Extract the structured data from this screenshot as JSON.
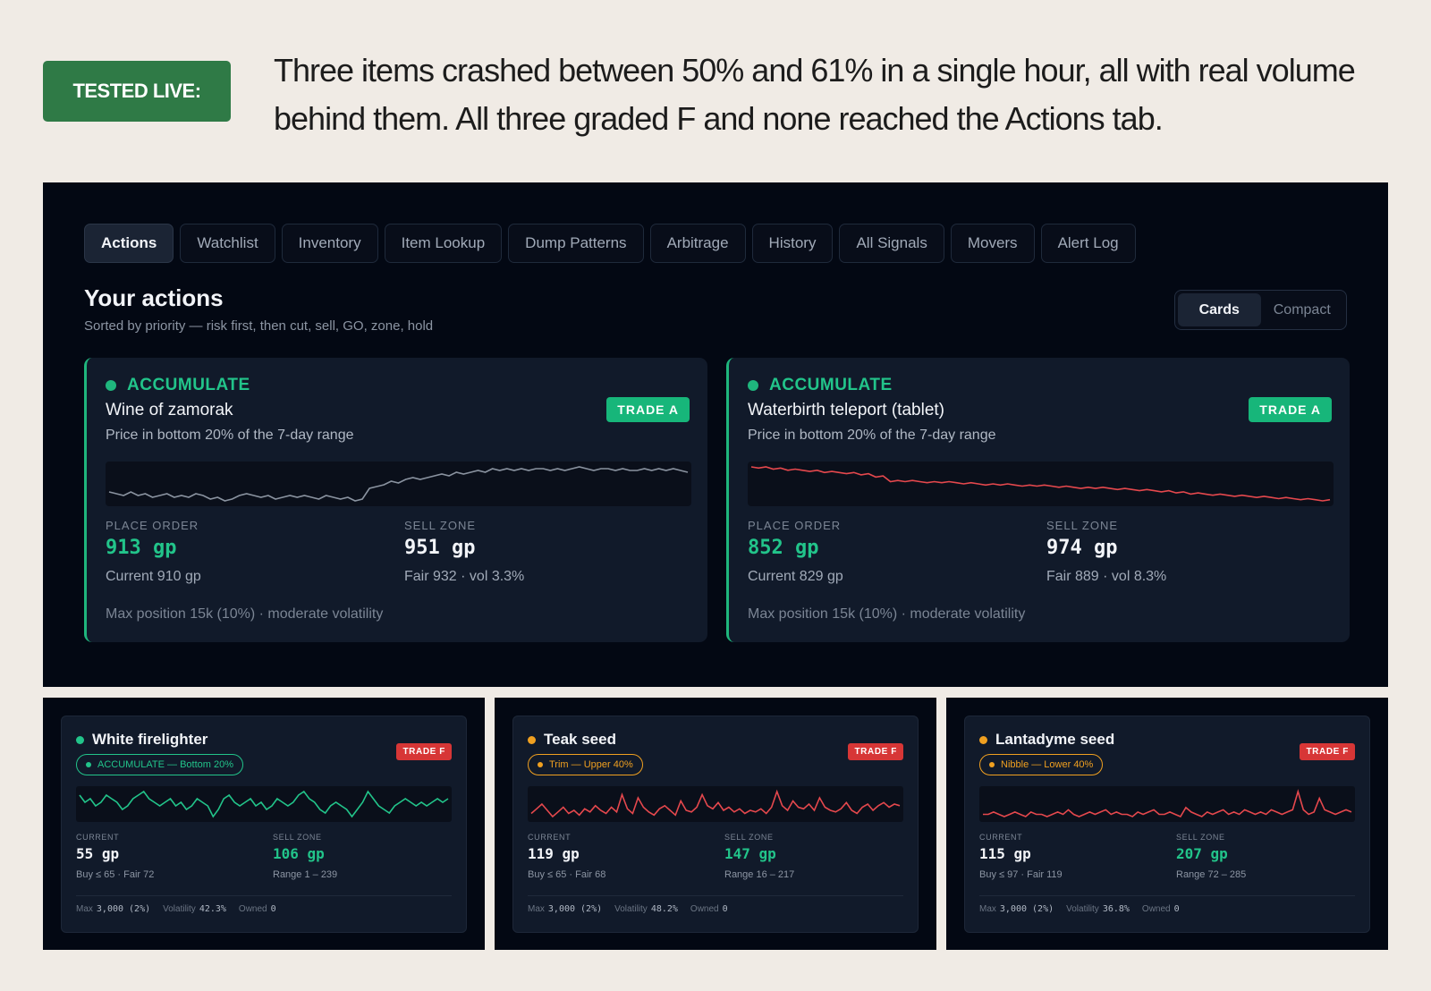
{
  "badge": "TESTED LIVE:",
  "headline": "Three items crashed between 50% and 61% in a single hour, all with real volume behind them. All three graded F and none reached the Actions tab.",
  "tabs": [
    "Actions",
    "Watchlist",
    "Inventory",
    "Item Lookup",
    "Dump Patterns",
    "Arbitrage",
    "History",
    "All Signals",
    "Movers",
    "Alert Log"
  ],
  "active_tab": "Actions",
  "section": {
    "title": "Your actions",
    "subtitle": "Sorted by priority — risk first, then cut, sell, GO, zone, hold"
  },
  "view_toggle": {
    "cards": "Cards",
    "compact": "Compact",
    "active": "Cards"
  },
  "colors": {
    "green": "#22c48a",
    "red": "#e5484d",
    "orange": "#f0a020",
    "grey": "#8a93a0"
  },
  "action_cards": [
    {
      "signal": "ACCUMULATE",
      "item": "Wine of zamorak",
      "grade": "TRADE A",
      "reason": "Price in bottom 20% of the 7-day range",
      "place_label": "PLACE ORDER",
      "place_value": "913 gp",
      "place_sub": "Current 910 gp",
      "sell_label": "SELL ZONE",
      "sell_value": "951 gp",
      "sell_sub": "Fair 932 · vol 3.3%",
      "footer": "Max position 15k (10%) · moderate volatility",
      "spark_color": "grey",
      "spark": [
        904,
        903,
        902,
        904,
        902,
        903,
        901,
        902,
        903,
        901,
        902,
        901,
        903,
        902,
        900,
        901,
        899,
        900,
        902,
        903,
        902,
        901,
        902,
        900,
        901,
        902,
        901,
        902,
        901,
        900,
        902,
        901,
        900,
        901,
        899,
        900,
        906,
        907,
        908,
        910,
        909,
        911,
        912,
        911,
        912,
        913,
        914,
        913,
        915,
        914,
        915,
        916,
        915,
        917,
        916,
        917,
        916,
        917,
        916,
        917,
        917,
        916,
        917,
        916,
        917,
        918,
        917,
        916,
        917,
        917,
        916,
        917,
        916,
        916,
        917,
        916,
        917,
        916,
        917,
        916,
        915
      ]
    },
    {
      "signal": "ACCUMULATE",
      "item": "Waterbirth teleport (tablet)",
      "grade": "TRADE A",
      "reason": "Price in bottom 20% of the 7-day range",
      "place_label": "PLACE ORDER",
      "place_value": "852 gp",
      "place_sub": "Current 829 gp",
      "sell_label": "SELL ZONE",
      "sell_value": "974 gp",
      "sell_sub": "Fair 889 · vol 8.3%",
      "footer": "Max position 15k (10%) · moderate volatility",
      "spark_color": "red",
      "spark": [
        975,
        974,
        975,
        973,
        974,
        972,
        973,
        972,
        971,
        972,
        970,
        971,
        970,
        969,
        970,
        968,
        969,
        966,
        967,
        962,
        963,
        962,
        963,
        962,
        961,
        962,
        961,
        962,
        961,
        960,
        961,
        960,
        959,
        960,
        959,
        960,
        959,
        958,
        959,
        958,
        959,
        958,
        957,
        958,
        957,
        956,
        957,
        956,
        957,
        956,
        955,
        956,
        955,
        954,
        955,
        954,
        953,
        954,
        952,
        953,
        951,
        952,
        951,
        950,
        951,
        950,
        949,
        950,
        949,
        948,
        949,
        948,
        947,
        948,
        947,
        946,
        947,
        946,
        945,
        946
      ]
    }
  ],
  "graded_cards": [
    {
      "item": "White firelighter",
      "dot_color": "green",
      "pill": "ACCUMULATE — Bottom 20%",
      "pill_color": "green",
      "grade": "TRADE F",
      "current_label": "CURRENT",
      "current_value": "55 gp",
      "current_sub": "Buy ≤ 65 · Fair 72",
      "sell_label": "SELL ZONE",
      "sell_value": "106 gp",
      "sell_sub": "Range 1 – 239",
      "max_label": "Max",
      "max_value": "3,000 (2%)",
      "vol_label": "Volatility",
      "vol_value": "42.3%",
      "owned_label": "Owned",
      "owned_value": "0",
      "spark_color": "green",
      "spark": [
        60,
        58,
        59,
        57,
        58,
        60,
        59,
        58,
        56,
        57,
        59,
        60,
        61,
        59,
        58,
        57,
        58,
        59,
        57,
        58,
        56,
        57,
        59,
        58,
        57,
        54,
        56,
        59,
        60,
        58,
        57,
        58,
        59,
        57,
        58,
        56,
        57,
        59,
        58,
        57,
        58,
        60,
        61,
        59,
        58,
        56,
        55,
        57,
        58,
        57,
        56,
        54,
        56,
        58,
        61,
        59,
        57,
        56,
        55,
        57,
        58,
        59,
        58,
        57,
        58,
        57,
        58,
        59,
        58,
        59
      ]
    },
    {
      "item": "Teak seed",
      "dot_color": "orange",
      "pill": "Trim — Upper 40%",
      "pill_color": "orange",
      "grade": "TRADE F",
      "current_label": "CURRENT",
      "current_value": "119 gp",
      "current_sub": "Buy ≤ 65 · Fair 68",
      "sell_label": "SELL ZONE",
      "sell_value": "147 gp",
      "sell_sub": "Range 16 – 217",
      "max_label": "Max",
      "max_value": "3,000 (2%)",
      "vol_label": "Volatility",
      "vol_value": "48.2%",
      "owned_label": "Owned",
      "owned_value": "0",
      "spark_color": "red",
      "spark": [
        48,
        51,
        54,
        50,
        46,
        49,
        52,
        48,
        50,
        47,
        51,
        49,
        53,
        50,
        48,
        52,
        49,
        60,
        51,
        48,
        58,
        52,
        49,
        47,
        51,
        53,
        50,
        47,
        56,
        50,
        49,
        52,
        60,
        53,
        51,
        55,
        50,
        52,
        49,
        51,
        48,
        50,
        49,
        51,
        48,
        52,
        62,
        53,
        50,
        56,
        52,
        51,
        54,
        50,
        58,
        52,
        50,
        49,
        51,
        55,
        50,
        48,
        52,
        54,
        50,
        53,
        55,
        52,
        54,
        53
      ]
    },
    {
      "item": "Lantadyme seed",
      "dot_color": "orange",
      "pill": "Nibble — Lower 40%",
      "pill_color": "orange",
      "grade": "TRADE F",
      "current_label": "CURRENT",
      "current_value": "115 gp",
      "current_sub": "Buy ≤ 97 · Fair 119",
      "sell_label": "SELL ZONE",
      "sell_value": "207 gp",
      "sell_sub": "Range 72 – 285",
      "max_label": "Max",
      "max_value": "3,000 (2%)",
      "vol_label": "Volatility",
      "vol_value": "36.8%",
      "owned_label": "Owned",
      "owned_value": "0",
      "spark_color": "red",
      "spark": [
        50,
        50,
        51,
        50,
        49,
        50,
        51,
        50,
        49,
        51,
        50,
        50,
        49,
        50,
        51,
        50,
        52,
        50,
        49,
        50,
        51,
        50,
        51,
        52,
        50,
        51,
        50,
        50,
        49,
        51,
        50,
        51,
        52,
        50,
        50,
        51,
        50,
        49,
        53,
        51,
        50,
        49,
        51,
        50,
        51,
        52,
        50,
        51,
        50,
        52,
        51,
        50,
        51,
        50,
        52,
        51,
        50,
        51,
        52,
        60,
        52,
        50,
        51,
        57,
        52,
        51,
        50,
        51,
        52,
        51
      ]
    }
  ]
}
